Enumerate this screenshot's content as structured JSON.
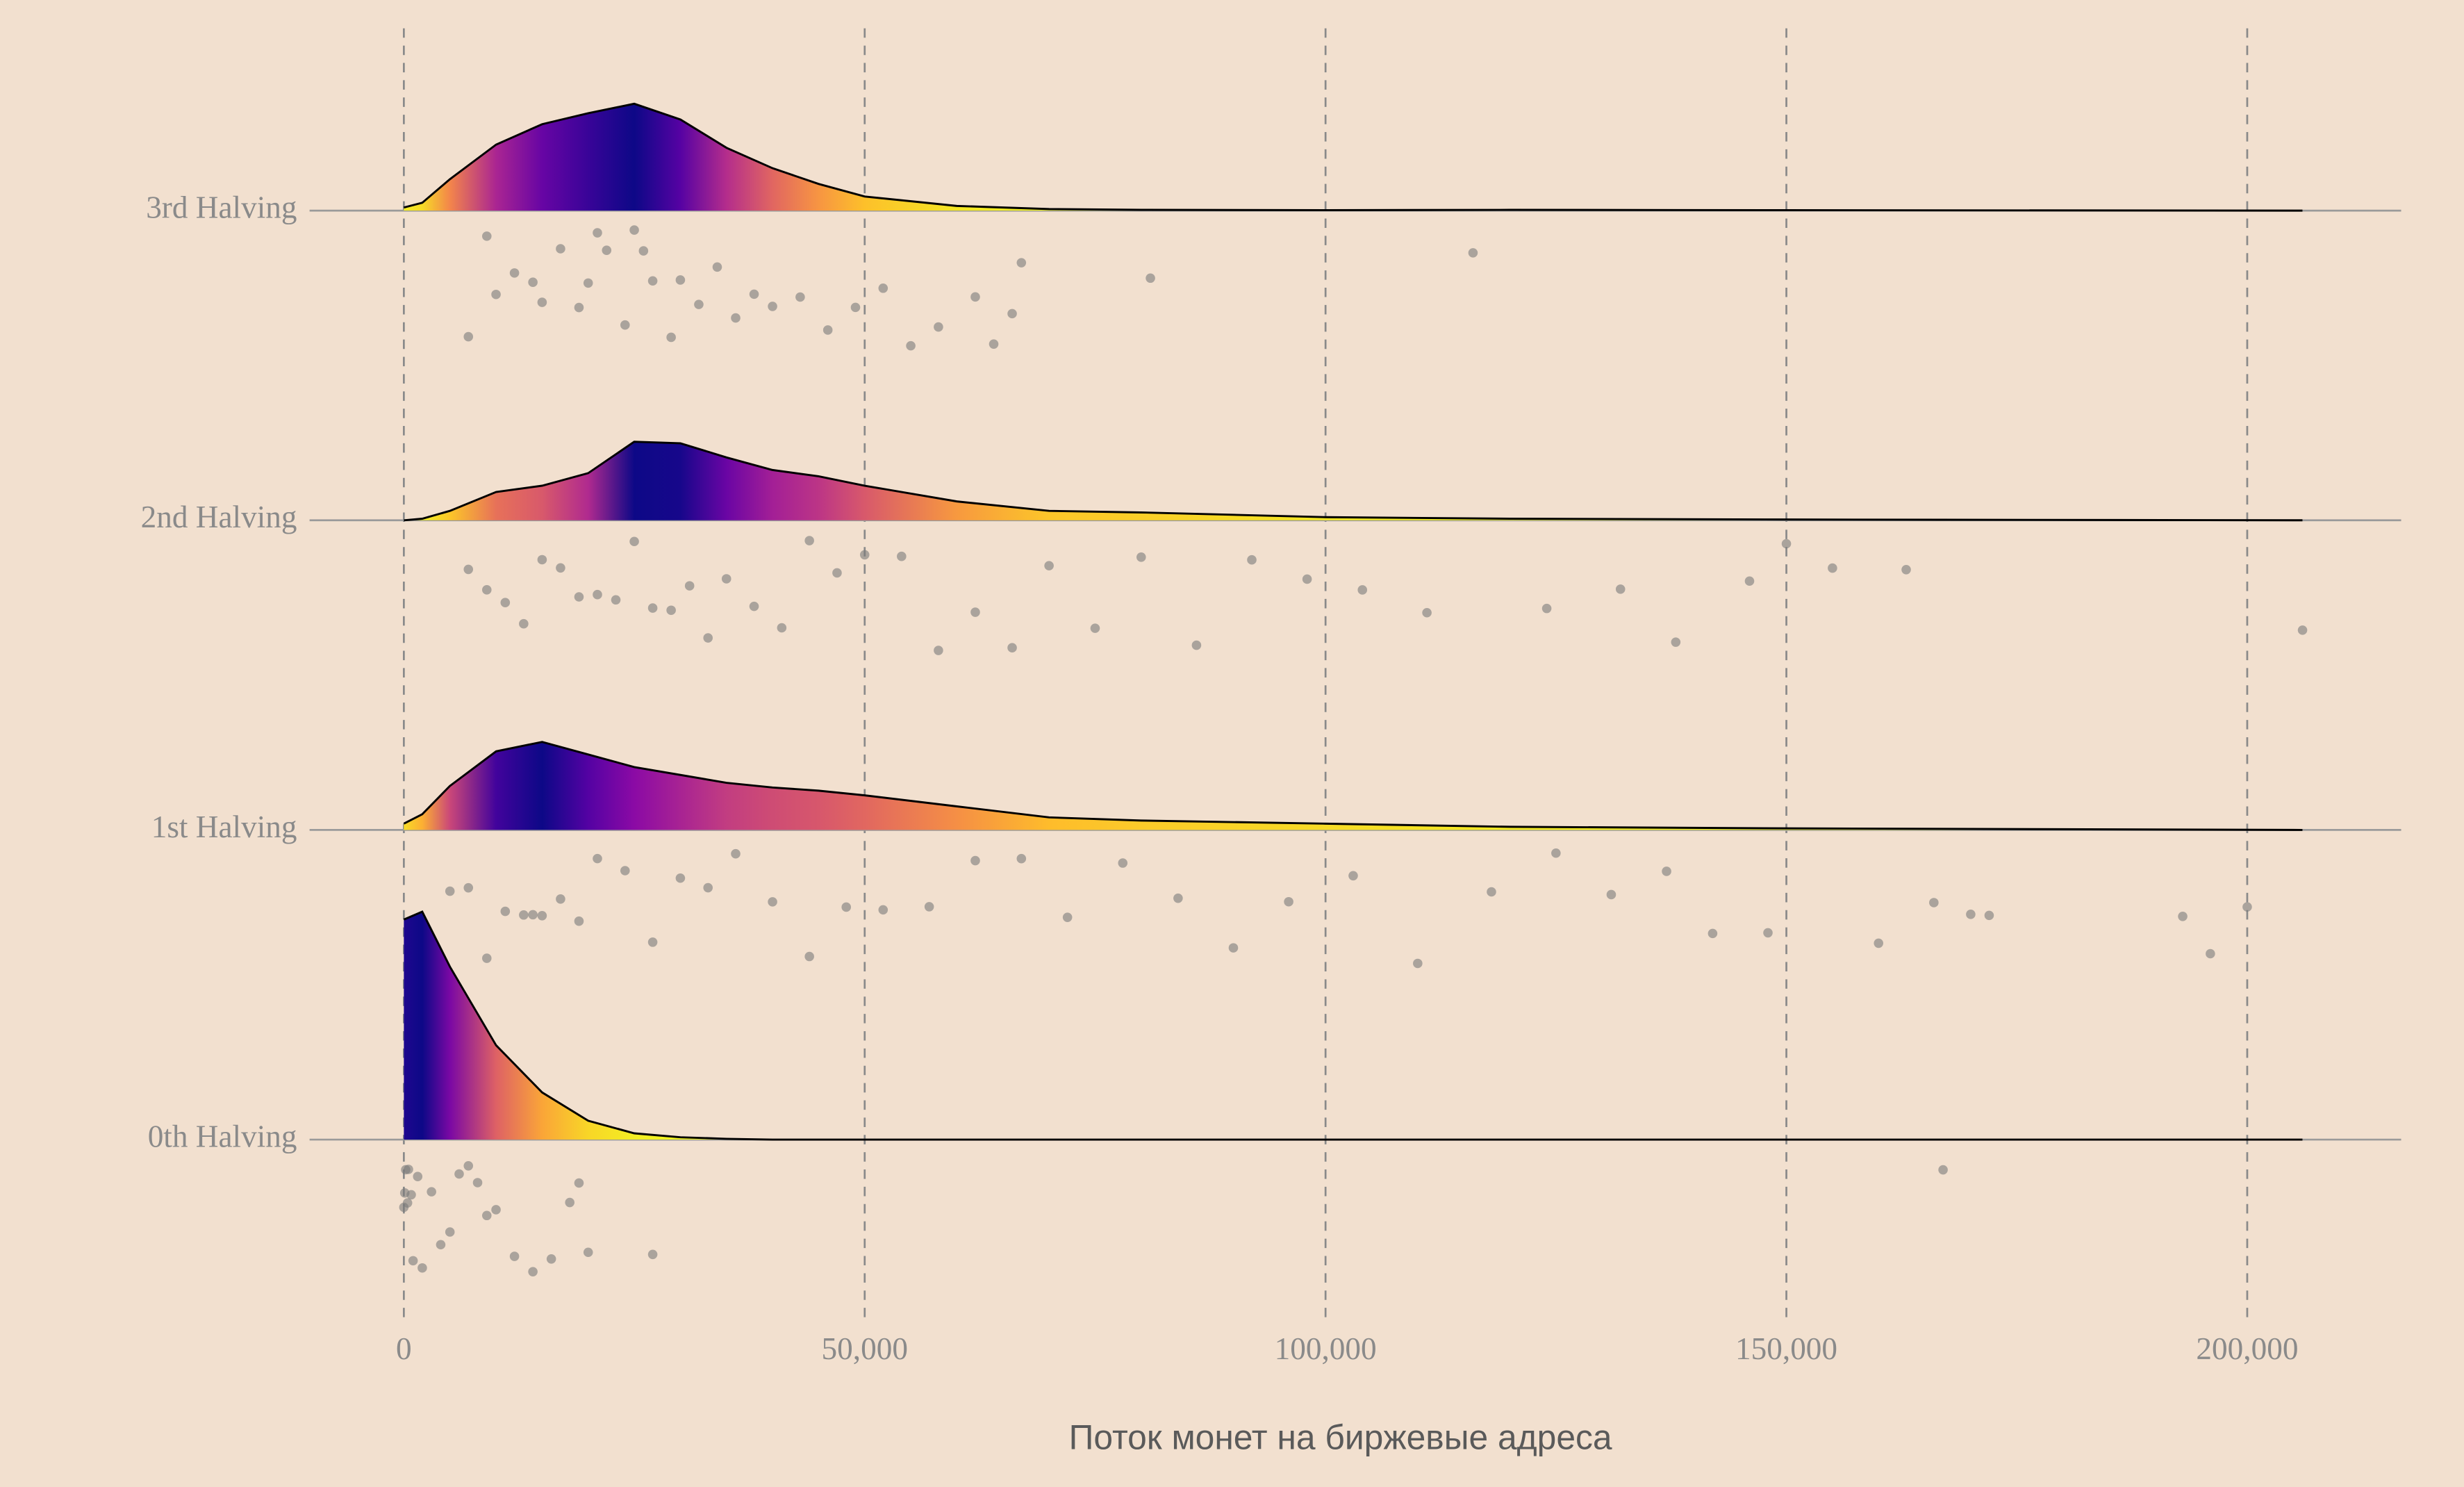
{
  "chart_data": {
    "type": "ridgeline",
    "xlabel": "Поток монет на биржевые адреса",
    "xlim": [
      -10230,
      216700
    ],
    "xticks": [
      0,
      {
        "value": 50000,
        "label": "50,000"
      },
      {
        "value": 100000,
        "label": "100,000"
      },
      {
        "value": 150000,
        "label": "150,000"
      },
      {
        "value": 200000,
        "label": "200,000"
      }
    ],
    "grid": true,
    "colormap": "plasma",
    "point_color": "#7a7a7a",
    "density_x": [
      0,
      2000,
      5000,
      10000,
      15000,
      20000,
      25000,
      30000,
      35000,
      40000,
      45000,
      50000,
      60000,
      70000,
      80000,
      100000,
      120000,
      150000,
      206000
    ],
    "series": [
      {
        "name": "3rd Halving",
        "density": [
          0.02,
          0.05,
          0.2,
          0.42,
          0.55,
          0.62,
          0.68,
          0.58,
          0.4,
          0.27,
          0.17,
          0.09,
          0.03,
          0.01,
          0.005,
          0.003,
          0.005,
          0.003,
          0
        ],
        "points": [
          7000,
          9000,
          10000,
          12000,
          14000,
          15000,
          17000,
          19000,
          20000,
          21000,
          22000,
          24000,
          25000,
          26000,
          27000,
          29000,
          30000,
          32000,
          34000,
          36000,
          38000,
          40000,
          43000,
          46000,
          49000,
          52000,
          55000,
          58000,
          62000,
          64000,
          66000,
          67000,
          81000,
          116000
        ]
      },
      {
        "name": "2nd Halving",
        "density": [
          0,
          0.01,
          0.06,
          0.18,
          0.22,
          0.3,
          0.5,
          0.49,
          0.4,
          0.32,
          0.28,
          0.22,
          0.12,
          0.06,
          0.05,
          0.02,
          0.01,
          0.005,
          0
        ],
        "points": [
          7000,
          9000,
          11000,
          13000,
          15000,
          17000,
          19000,
          21000,
          23000,
          25000,
          27000,
          29000,
          31000,
          33000,
          35000,
          38000,
          41000,
          44000,
          47000,
          50000,
          54000,
          58000,
          62000,
          66000,
          70000,
          75000,
          80000,
          86000,
          92000,
          98000,
          104000,
          111000,
          124000,
          132000,
          138000,
          146000,
          150000,
          155000,
          163000,
          206000
        ]
      },
      {
        "name": "1st Halving",
        "density": [
          0.04,
          0.1,
          0.28,
          0.5,
          0.56,
          0.48,
          0.4,
          0.35,
          0.3,
          0.27,
          0.25,
          0.22,
          0.15,
          0.08,
          0.06,
          0.04,
          0.02,
          0.01,
          0
        ],
        "points": [
          3000,
          5000,
          7000,
          9000,
          11000,
          13000,
          14000,
          15000,
          17000,
          19000,
          21000,
          24000,
          27000,
          30000,
          33000,
          36000,
          40000,
          44000,
          48000,
          52000,
          57000,
          62000,
          67000,
          72000,
          78000,
          84000,
          90000,
          96000,
          103000,
          110000,
          118000,
          125000,
          131000,
          137000,
          142000,
          148000,
          160000,
          166000,
          170000,
          172000,
          193000,
          196000,
          200000
        ]
      },
      {
        "name": "0th Halving",
        "density": [
          1.4,
          1.45,
          1.1,
          0.6,
          0.3,
          0.12,
          0.04,
          0.015,
          0.005,
          0,
          0,
          0,
          0,
          0,
          0,
          0,
          0,
          0,
          0
        ],
        "points": [
          0,
          100,
          200,
          400,
          500,
          800,
          1000,
          1500,
          2000,
          3000,
          4000,
          5000,
          6000,
          7000,
          8000,
          9000,
          10000,
          12000,
          14000,
          16000,
          18000,
          19000,
          20000,
          27000,
          167000
        ]
      }
    ]
  }
}
